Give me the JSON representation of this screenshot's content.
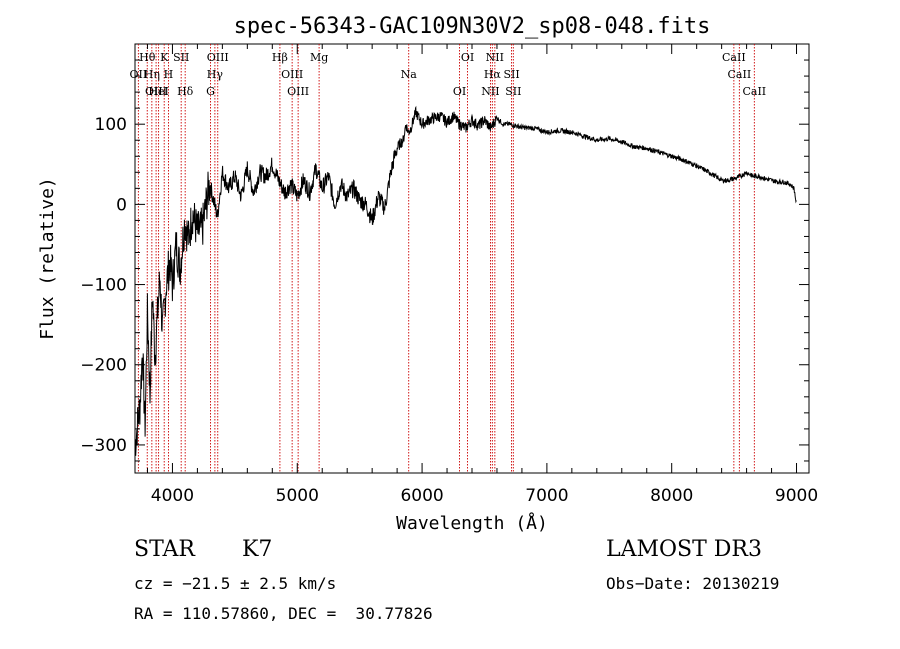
{
  "chart_data": {
    "type": "line",
    "title": "spec-56343-GAC109N30V2_sp08-048.fits",
    "xlabel": "Wavelength (Å)",
    "ylabel": "Flux (relative)",
    "xlim": [
      3700,
      9100
    ],
    "ylim": [
      -335,
      200
    ],
    "xticks": [
      4000,
      5000,
      6000,
      7000,
      8000,
      9000
    ],
    "yticks": [
      100,
      0,
      -100,
      -200,
      -300
    ],
    "grid": false,
    "series": [
      {
        "name": "Flux",
        "x": [
          3700,
          3740,
          3760,
          3780,
          3800,
          3820,
          3840,
          3860,
          3880,
          3900,
          3920,
          3950,
          3980,
          4000,
          4030,
          4060,
          4100,
          4130,
          4160,
          4200,
          4240,
          4280,
          4300,
          4330,
          4360,
          4400,
          4450,
          4500,
          4550,
          4600,
          4650,
          4700,
          4750,
          4800,
          4850,
          4900,
          4950,
          5000,
          5050,
          5100,
          5150,
          5200,
          5250,
          5300,
          5350,
          5400,
          5450,
          5500,
          5550,
          5600,
          5650,
          5700,
          5750,
          5780,
          5800,
          5820,
          5850,
          5870,
          5890,
          5910,
          5950,
          6000,
          6050,
          6100,
          6150,
          6200,
          6250,
          6300,
          6350,
          6400,
          6450,
          6500,
          6550,
          6600,
          6650,
          6700,
          6750,
          6800,
          6900,
          7000,
          7100,
          7200,
          7300,
          7400,
          7500,
          7600,
          7700,
          7800,
          7900,
          8000,
          8100,
          8200,
          8300,
          8400,
          8450,
          8500,
          8550,
          8600,
          8650,
          8700,
          8750,
          8800,
          8850,
          8900,
          8950,
          8980,
          9000
        ],
        "y": [
          -300,
          -250,
          -180,
          -280,
          -130,
          -240,
          -110,
          -190,
          -140,
          -90,
          -160,
          -100,
          -70,
          -100,
          -50,
          -80,
          -20,
          -45,
          -10,
          -35,
          -30,
          10,
          25,
          5,
          -15,
          40,
          20,
          35,
          10,
          45,
          15,
          40,
          35,
          50,
          30,
          15,
          25,
          10,
          30,
          15,
          45,
          20,
          35,
          0,
          25,
          10,
          20,
          5,
          0,
          -20,
          10,
          -5,
          40,
          60,
          70,
          75,
          80,
          100,
          90,
          95,
          115,
          100,
          105,
          108,
          110,
          102,
          110,
          100,
          95,
          105,
          98,
          105,
          95,
          108,
          100,
          100,
          98,
          96,
          95,
          90,
          92,
          90,
          85,
          80,
          82,
          78,
          72,
          70,
          65,
          60,
          55,
          48,
          40,
          30,
          30,
          32,
          35,
          40,
          35,
          35,
          32,
          30,
          28,
          28,
          25,
          20,
          0
        ]
      }
    ],
    "lines": [
      {
        "label": "Hθ",
        "wl": 3798
      },
      {
        "label": "OII",
        "wl": 3727
      },
      {
        "label": "OIII",
        "wl": 3869
      },
      {
        "label": "K",
        "wl": 3934
      },
      {
        "label": "H",
        "wl": 3968
      },
      {
        "label": "HeI",
        "wl": 3889
      },
      {
        "label": "SII",
        "wl": 4070
      },
      {
        "label": "Hη",
        "wl": 3835
      },
      {
        "label": "Hδ",
        "wl": 4102
      },
      {
        "label": "OIII",
        "wl": 4363
      },
      {
        "label": "Hγ",
        "wl": 4340
      },
      {
        "label": "G",
        "wl": 4305
      },
      {
        "label": "Hβ",
        "wl": 4861
      },
      {
        "label": "OIII",
        "wl": 4959
      },
      {
        "label": "OIII",
        "wl": 5007
      },
      {
        "label": "Mg",
        "wl": 5175
      },
      {
        "label": "Na",
        "wl": 5893
      },
      {
        "label": "OI",
        "wl": 6300
      },
      {
        "label": "OI",
        "wl": 6364
      },
      {
        "label": "Hα",
        "wl": 6563
      },
      {
        "label": "NII",
        "wl": 6548
      },
      {
        "label": "NII",
        "wl": 6583
      },
      {
        "label": "SII",
        "wl": 6717
      },
      {
        "label": "SII",
        "wl": 6731
      },
      {
        "label": "CaII",
        "wl": 8498
      },
      {
        "label": "CaII",
        "wl": 8542
      },
      {
        "label": "CaII",
        "wl": 8662
      }
    ]
  },
  "info": {
    "class": "STAR",
    "subclass": "K7",
    "survey": "LAMOST DR3",
    "cz": "cz = −21.5 ± 2.5 km/s",
    "obs_date": "Obs−Date: 20130219",
    "coords": "RA = 110.57860, DEC =  30.77826"
  }
}
